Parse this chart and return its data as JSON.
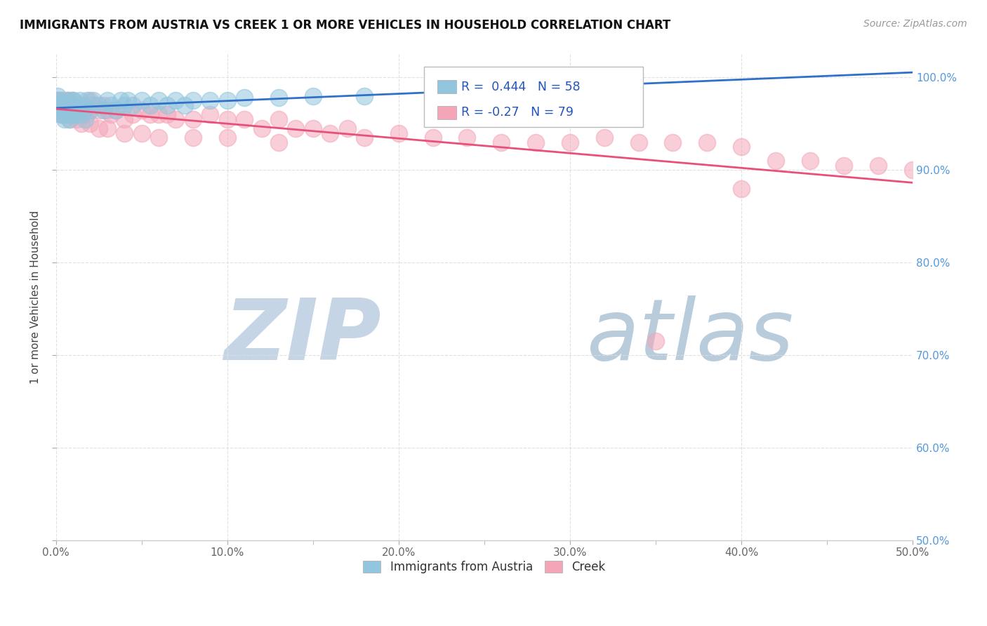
{
  "title": "IMMIGRANTS FROM AUSTRIA VS CREEK 1 OR MORE VEHICLES IN HOUSEHOLD CORRELATION CHART",
  "source": "Source: ZipAtlas.com",
  "ylabel": "1 or more Vehicles in Household",
  "xlim": [
    0.0,
    0.5
  ],
  "ylim": [
    0.5,
    1.025
  ],
  "xtick_major": [
    0.0,
    0.1,
    0.2,
    0.3,
    0.4,
    0.5
  ],
  "xtick_minor": [
    0.05,
    0.15,
    0.25,
    0.35,
    0.45
  ],
  "xtick_labels": [
    "0.0%",
    "10.0%",
    "20.0%",
    "30.0%",
    "40.0%",
    "50.0%"
  ],
  "ytick_values": [
    0.5,
    0.6,
    0.7,
    0.8,
    0.9,
    1.0
  ],
  "ytick_labels": [
    "50.0%",
    "60.0%",
    "70.0%",
    "80.0%",
    "90.0%",
    "100.0%"
  ],
  "austria_color": "#92C5DE",
  "creek_color": "#F4A6B8",
  "austria_R": 0.444,
  "austria_N": 58,
  "creek_R": -0.27,
  "creek_N": 79,
  "trend_austria_color": "#3070C8",
  "trend_creek_color": "#E8507A",
  "austria_x": [
    0.001,
    0.001,
    0.001,
    0.002,
    0.002,
    0.002,
    0.003,
    0.003,
    0.003,
    0.004,
    0.004,
    0.005,
    0.005,
    0.005,
    0.006,
    0.006,
    0.007,
    0.007,
    0.008,
    0.008,
    0.008,
    0.009,
    0.009,
    0.01,
    0.01,
    0.01,
    0.012,
    0.013,
    0.014,
    0.015,
    0.016,
    0.017,
    0.018,
    0.02,
    0.022,
    0.025,
    0.028,
    0.03,
    0.032,
    0.035,
    0.038,
    0.04,
    0.042,
    0.045,
    0.05,
    0.055,
    0.06,
    0.065,
    0.07,
    0.075,
    0.08,
    0.09,
    0.1,
    0.11,
    0.13,
    0.15,
    0.18,
    0.22
  ],
  "austria_y": [
    0.975,
    0.97,
    0.98,
    0.965,
    0.97,
    0.975,
    0.96,
    0.965,
    0.97,
    0.96,
    0.97,
    0.955,
    0.965,
    0.97,
    0.965,
    0.97,
    0.975,
    0.96,
    0.97,
    0.955,
    0.965,
    0.975,
    0.96,
    0.97,
    0.965,
    0.975,
    0.96,
    0.965,
    0.975,
    0.96,
    0.97,
    0.955,
    0.975,
    0.965,
    0.975,
    0.97,
    0.965,
    0.975,
    0.97,
    0.965,
    0.975,
    0.97,
    0.975,
    0.97,
    0.975,
    0.97,
    0.975,
    0.97,
    0.975,
    0.97,
    0.975,
    0.975,
    0.975,
    0.978,
    0.978,
    0.98,
    0.98,
    0.98
  ],
  "creek_x": [
    0.001,
    0.001,
    0.002,
    0.002,
    0.003,
    0.004,
    0.004,
    0.005,
    0.005,
    0.006,
    0.006,
    0.007,
    0.007,
    0.008,
    0.008,
    0.009,
    0.01,
    0.01,
    0.012,
    0.014,
    0.016,
    0.018,
    0.02,
    0.022,
    0.025,
    0.028,
    0.03,
    0.032,
    0.035,
    0.04,
    0.045,
    0.05,
    0.055,
    0.06,
    0.065,
    0.07,
    0.08,
    0.09,
    0.1,
    0.11,
    0.12,
    0.13,
    0.14,
    0.15,
    0.16,
    0.17,
    0.18,
    0.2,
    0.22,
    0.24,
    0.26,
    0.28,
    0.3,
    0.32,
    0.34,
    0.36,
    0.38,
    0.4,
    0.42,
    0.44,
    0.46,
    0.48,
    0.5,
    0.004,
    0.006,
    0.008,
    0.012,
    0.015,
    0.02,
    0.025,
    0.03,
    0.04,
    0.05,
    0.06,
    0.08,
    0.1,
    0.13,
    0.4,
    0.35
  ],
  "creek_y": [
    0.975,
    0.97,
    0.975,
    0.97,
    0.97,
    0.975,
    0.97,
    0.965,
    0.97,
    0.975,
    0.97,
    0.975,
    0.97,
    0.965,
    0.97,
    0.97,
    0.975,
    0.97,
    0.965,
    0.97,
    0.965,
    0.96,
    0.975,
    0.97,
    0.965,
    0.97,
    0.965,
    0.96,
    0.965,
    0.955,
    0.96,
    0.965,
    0.96,
    0.96,
    0.96,
    0.955,
    0.955,
    0.96,
    0.955,
    0.955,
    0.945,
    0.955,
    0.945,
    0.945,
    0.94,
    0.945,
    0.935,
    0.94,
    0.935,
    0.935,
    0.93,
    0.93,
    0.93,
    0.935,
    0.93,
    0.93,
    0.93,
    0.925,
    0.91,
    0.91,
    0.905,
    0.905,
    0.9,
    0.96,
    0.96,
    0.955,
    0.955,
    0.95,
    0.95,
    0.945,
    0.945,
    0.94,
    0.94,
    0.935,
    0.935,
    0.935,
    0.93,
    0.88,
    0.715
  ],
  "watermark_zip": "ZIP",
  "watermark_atlas": "atlas",
  "watermark_color_zip": "#C5D5E5",
  "watermark_color_atlas": "#B8CCDC",
  "background_color": "#FFFFFF",
  "grid_color": "#DDDDDD",
  "tick_color": "#AAAAAA",
  "right_tick_color": "#5599DD",
  "legend_border_color": "#BBBBBB"
}
